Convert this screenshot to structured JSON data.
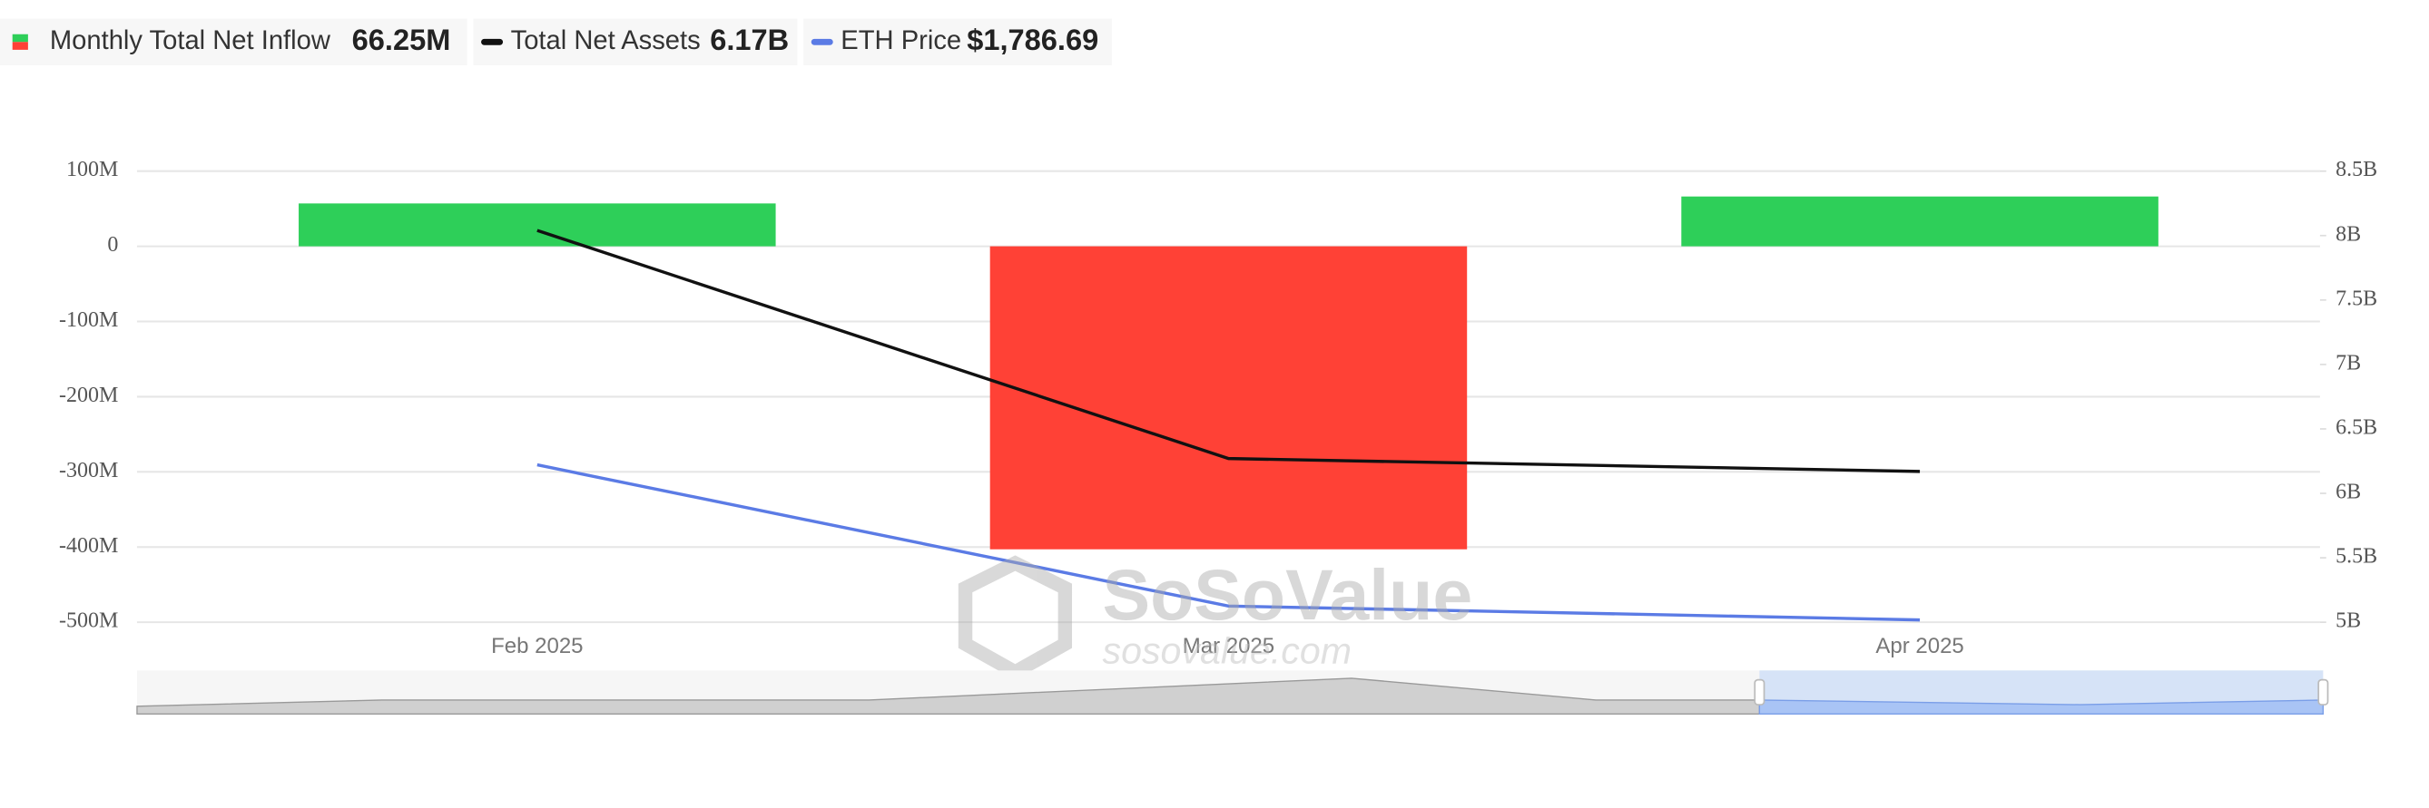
{
  "chart_data": {
    "type": "bar-line",
    "legend": [
      {
        "label": "Monthly Total Net Inflow",
        "value": "66.25M"
      },
      {
        "label": "Total Net Assets",
        "value": "6.17B"
      },
      {
        "label": "ETH Price",
        "value": "$1,786.69"
      }
    ],
    "watermark": "SoSoValue",
    "watermark_url": "sosovalue.com",
    "categories": [
      "Feb 2025",
      "Mar 2025",
      "Apr 2025"
    ],
    "series": [
      {
        "name": "Monthly Total Net Inflow",
        "type": "bar",
        "positive_color": "#2ecf59",
        "negative_color": "#ff4136",
        "values": [
          57,
          -403,
          66.25
        ]
      },
      {
        "name": "Total Net Assets",
        "type": "line",
        "color": "#111111",
        "axis": "y2",
        "values": [
          8.04,
          6.27,
          6.17
        ]
      },
      {
        "name": "ETH Price",
        "type": "line",
        "color": "#5b7be5",
        "axis": "y3",
        "values": [
          2237,
          1827,
          1786.69
        ]
      }
    ],
    "ylim": [
      -500,
      100
    ],
    "yticks": [
      {
        "value": 100,
        "label": "100M"
      },
      0,
      {
        "value": -100,
        "label": "-100M"
      },
      {
        "value": -200,
        "label": "-200M"
      },
      {
        "value": -300,
        "label": "-300M"
      },
      {
        "value": -400,
        "label": "-400M"
      },
      {
        "value": -500,
        "label": "-500M"
      }
    ],
    "y2lim": [
      5,
      8.5
    ],
    "y2ticks": [
      {
        "value": 8.5,
        "label": "8.5B"
      },
      {
        "value": 8,
        "label": "8B"
      },
      {
        "value": 7.5,
        "label": "7.5B"
      },
      {
        "value": 7,
        "label": "7B"
      },
      {
        "value": 6.5,
        "label": "6.5B"
      },
      {
        "value": 6,
        "label": "6B"
      },
      {
        "value": 5.5,
        "label": "5.5B"
      },
      {
        "value": 5,
        "label": "5B"
      }
    ],
    "y3lim": [
      1780,
      3090
    ],
    "grid": true
  }
}
